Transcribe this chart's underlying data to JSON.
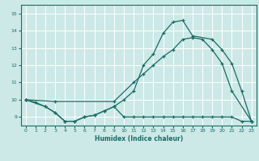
{
  "xlabel": "Humidex (Indice chaleur)",
  "xlim": [
    -0.5,
    23.5
  ],
  "ylim": [
    8.5,
    15.5
  ],
  "yticks": [
    9,
    10,
    11,
    12,
    13,
    14,
    15
  ],
  "xticks": [
    0,
    1,
    2,
    3,
    4,
    5,
    6,
    7,
    8,
    9,
    10,
    11,
    12,
    13,
    14,
    15,
    16,
    17,
    18,
    19,
    20,
    21,
    22,
    23
  ],
  "bg_color": "#cce9e7",
  "line_color": "#1a6b65",
  "grid_color": "#ffffff",
  "curve1_x": [
    0,
    1,
    2,
    3,
    4,
    5,
    6,
    7,
    8,
    9,
    10,
    11,
    12,
    13,
    14,
    15,
    16,
    17,
    19,
    20,
    21,
    22,
    23
  ],
  "curve1_y": [
    10.0,
    9.85,
    9.6,
    9.25,
    8.75,
    8.75,
    9.0,
    9.1,
    9.35,
    9.6,
    10.0,
    10.5,
    12.0,
    12.65,
    13.85,
    14.5,
    14.6,
    13.7,
    13.5,
    12.9,
    12.1,
    10.5,
    8.75
  ],
  "curve2_x": [
    0,
    3,
    9,
    11,
    12,
    13,
    14,
    15,
    16,
    17,
    18,
    19,
    20,
    21,
    23
  ],
  "curve2_y": [
    10.0,
    9.9,
    9.9,
    11.0,
    11.5,
    12.0,
    12.5,
    12.9,
    13.5,
    13.6,
    13.5,
    12.9,
    12.1,
    10.5,
    8.75
  ],
  "curve3_x": [
    0,
    2,
    3,
    4,
    5,
    6,
    7,
    8,
    9,
    10,
    11,
    12,
    13,
    14,
    15,
    16,
    17,
    18,
    19,
    20,
    21,
    22,
    23
  ],
  "curve3_y": [
    10.0,
    9.6,
    9.25,
    8.75,
    8.75,
    9.0,
    9.1,
    9.35,
    9.6,
    9.0,
    9.0,
    9.0,
    9.0,
    9.0,
    9.0,
    9.0,
    9.0,
    9.0,
    9.0,
    9.0,
    9.0,
    8.75,
    8.75
  ]
}
